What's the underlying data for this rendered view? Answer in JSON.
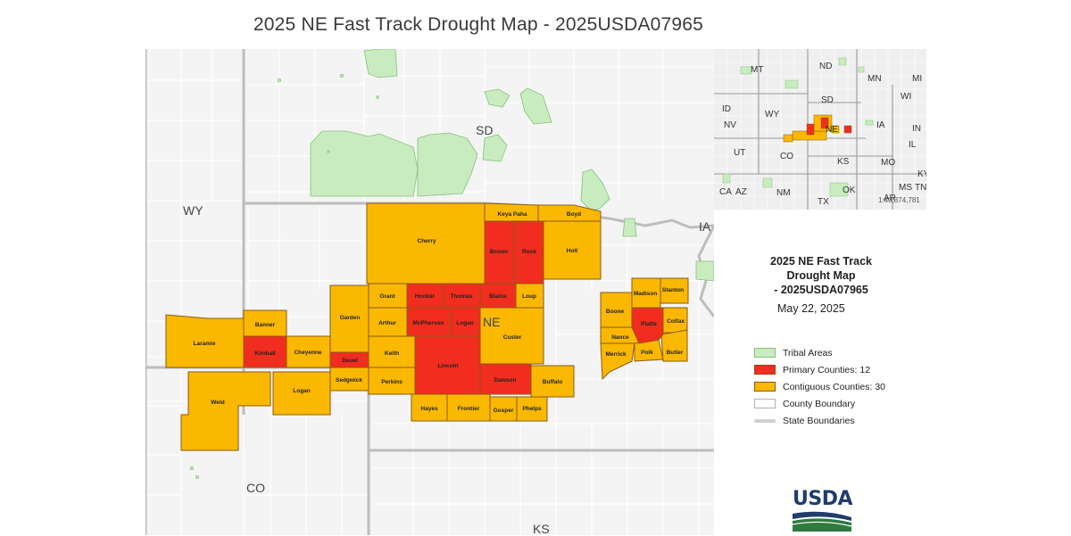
{
  "title": "2025 NE Fast Track Drought Map - 2025USDA07965",
  "state_labels": [
    "WY",
    "SD",
    "NE",
    "IA",
    "CO",
    "KS"
  ],
  "primary_counties": [
    "Kimball",
    "Deuel",
    "Hooker",
    "Thomas",
    "Blaine",
    "McPherson",
    "Logan",
    "Brown",
    "Rock",
    "Lincoln",
    "Dawson",
    "Platte"
  ],
  "contiguous_counties": [
    "Keya Paha",
    "Boyd",
    "Cherry",
    "Holt",
    "Grant",
    "Loup",
    "Arthur",
    "Garden",
    "Banner",
    "Laramie",
    "Cheyenne",
    "Keith",
    "Custer",
    "Perkins",
    "Sedgwick",
    "Weld",
    "Logan",
    "Buffalo",
    "Hayes",
    "Frontier",
    "Gosper",
    "Phelps",
    "Boone",
    "Madison",
    "Stanton",
    "Colfax",
    "Nance",
    "Merrick",
    "Polk",
    "Butler"
  ],
  "inset": {
    "labels": [
      "MT",
      "ND",
      "MN",
      "MI",
      "SD",
      "WI",
      "ID",
      "WY",
      "IA",
      "IN",
      "NE",
      "NV",
      "IL",
      "UT",
      "CO",
      "KS",
      "MO",
      "KY",
      "CA",
      "AZ",
      "NM",
      "OK",
      "AR",
      "MS",
      "TN",
      "TX"
    ],
    "scale": "1:40,374,781"
  },
  "legend": {
    "title_line1": "2025 NE Fast Track",
    "title_line2": "Drought Map",
    "title_line3": "- 2025USDA07965",
    "date": "May 22, 2025",
    "items": [
      {
        "label": "Tribal Areas",
        "color": "#c8ecc0",
        "border": "#86c17a"
      },
      {
        "label": "Primary Counties: 12",
        "color": "#f02d1e",
        "border": "#8a4a14"
      },
      {
        "label": "Contiguous Counties: 30",
        "color": "#fbb800",
        "border": "#8a5a14"
      },
      {
        "label": "County Boundary",
        "color": "#ffffff",
        "border": "#b0b0b0"
      },
      {
        "label": "State Boundaries",
        "color": "#cfcfcf",
        "border": "#cfcfcf"
      }
    ]
  },
  "logo": {
    "text": "USDA"
  },
  "colors": {
    "primary": "#f02d1e",
    "contiguous": "#fbb800",
    "tribal": "#c8ecc0",
    "state_line": "#bdbdbd"
  }
}
